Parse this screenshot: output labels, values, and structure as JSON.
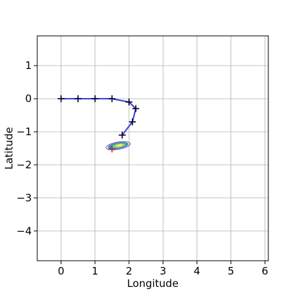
{
  "chart_data": {
    "type": "line",
    "title": "",
    "xlabel": "Longitude",
    "ylabel": "Latitude",
    "xlim": [
      -0.7,
      6.1
    ],
    "ylim": [
      -4.9,
      1.9
    ],
    "xticks": [
      0,
      1,
      2,
      3,
      4,
      5,
      6
    ],
    "yticks": [
      1,
      0,
      -1,
      -2,
      -3,
      -4
    ],
    "xtick_labels": [
      "0",
      "1",
      "2",
      "3",
      "4",
      "5",
      "6"
    ],
    "ytick_labels": [
      "1",
      "0",
      "−1",
      "−2",
      "−3",
      "−4"
    ],
    "grid": true,
    "legend": "none",
    "series": [
      {
        "marker": "+",
        "color": "#3b3bd6",
        "marker_color": "#000033",
        "x": [
          0.0,
          0.5,
          1.0,
          1.5,
          2.0,
          2.2,
          2.1,
          1.8
        ],
        "y": [
          0.0,
          0.0,
          0.0,
          0.0,
          -0.1,
          -0.3,
          -0.7,
          -1.1
        ]
      }
    ],
    "extra_marker": {
      "x": 1.5,
      "y": -1.52,
      "marker": "+",
      "color": "#a0305a"
    },
    "uncertainty_ellipse": {
      "cx": 1.68,
      "cy": -1.42,
      "rx": 0.36,
      "ry": 0.11,
      "angle_deg": -10,
      "fill_colors": [
        "#2f9f8c",
        "#7fd07a",
        "#f0ec6a"
      ],
      "edge_colors": [
        "#7b3fbf",
        "#3b6fd6"
      ]
    }
  }
}
